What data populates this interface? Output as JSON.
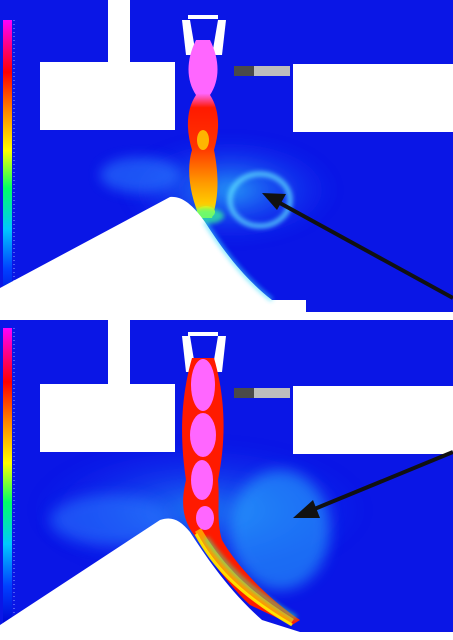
{
  "figure": {
    "panels": [
      {
        "id": "top",
        "view": "cfd-contour-velocity",
        "arrow_target": "recirculation-vortex"
      },
      {
        "id": "bottom",
        "view": "cfd-contour-velocity",
        "arrow_target": "attached-wall-jet"
      }
    ],
    "colorbar": {
      "colors": [
        "#ff00ff",
        "#ff0000",
        "#ff8c00",
        "#ffff00",
        "#00ff66",
        "#00c8ff",
        "#0040ff",
        "#0000d0"
      ]
    },
    "colors": {
      "background_flow": "#0a16e6",
      "solid": "#ffffff",
      "core_high": "#ff66ff",
      "high": "#ff1a00",
      "mid_high": "#ff9900",
      "mid": "#ffee00",
      "mid_low": "#33ff99",
      "low": "#00c8ff",
      "arrow": "#111111"
    }
  }
}
